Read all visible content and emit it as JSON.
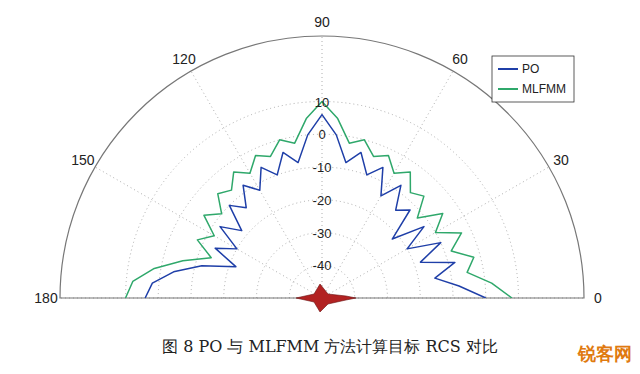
{
  "chart_data": {
    "type": "polar",
    "title": "图 8  PO 与 MLFMM 方法计算目标 RCS 对比",
    "annotations": [
      "锐客网"
    ],
    "x": [
      0,
      5,
      10,
      15,
      20,
      25,
      30,
      35,
      40,
      45,
      50,
      55,
      60,
      65,
      70,
      75,
      80,
      85,
      90,
      95,
      100,
      105,
      110,
      115,
      120,
      125,
      130,
      135,
      140,
      145,
      150,
      155,
      160,
      165,
      170,
      175,
      180
    ],
    "xlim": [
      0,
      180
    ],
    "xticks": [
      0,
      30,
      60,
      90,
      120,
      150,
      180
    ],
    "ylim": [
      -50,
      30
    ],
    "yticks": [
      -40,
      -30,
      -20,
      -10,
      0,
      10
    ],
    "grid": true,
    "legend": "top-right",
    "series": [
      {
        "name": "PO",
        "color": "#1f3fa8",
        "values": [
          0,
          -8,
          -15,
          -8,
          -18,
          -10,
          -20,
          -12,
          -22,
          -12,
          -15,
          -8,
          -14,
          -6,
          -10,
          -4,
          -8,
          0,
          6,
          0,
          -8,
          -4,
          -10,
          -6,
          -12,
          -8,
          -14,
          -10,
          -18,
          -12,
          -20,
          -14,
          -22,
          -12,
          -4,
          2,
          4
        ]
      },
      {
        "name": "MLFMM",
        "color": "#2fa86b",
        "values": [
          8,
          2,
          -5,
          -2,
          -8,
          -3,
          -10,
          -5,
          -12,
          -6,
          -8,
          -3,
          -6,
          -2,
          -4,
          0,
          -2,
          5,
          10,
          5,
          -2,
          0,
          -4,
          -2,
          -6,
          -3,
          -7,
          -5,
          -10,
          -6,
          -12,
          -8,
          -14,
          -6,
          2,
          8,
          10
        ]
      }
    ]
  }
}
